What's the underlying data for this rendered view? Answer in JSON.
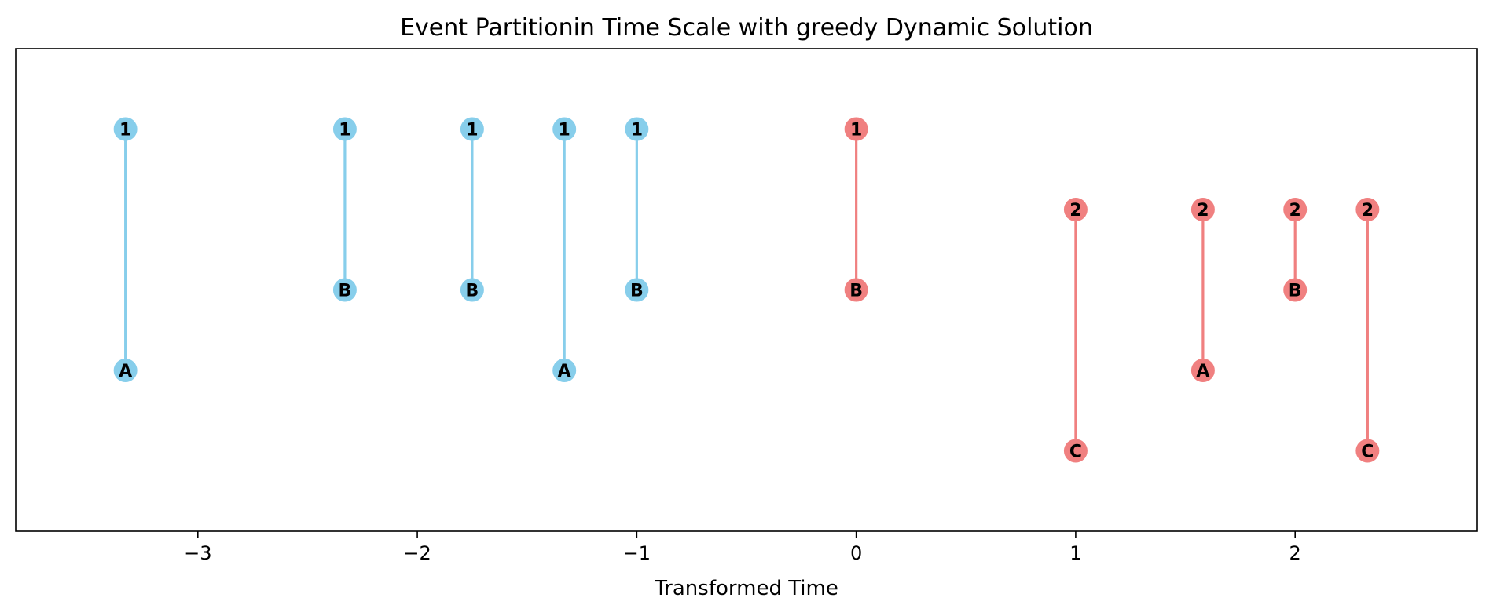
{
  "chart_data": {
    "type": "scatter",
    "title": "Event Partitionin Time Scale with greedy Dynamic Solution",
    "xlabel": "Transformed Time",
    "ylabel": "",
    "xlim": [
      -3.83,
      2.83
    ],
    "ylim": [
      -0.5,
      5.5
    ],
    "x_ticks": [
      -3,
      -2,
      -1,
      0,
      1,
      2
    ],
    "x_tick_labels": [
      "−3",
      "−2",
      "−1",
      "0",
      "1",
      "2"
    ],
    "grid": false,
    "legend": "none",
    "colors": {
      "blue": "#87ceeb",
      "red": "#f08080"
    },
    "levels": {
      "1": 4.5,
      "2": 3.5,
      "B": 2.5,
      "A": 1.5,
      "C": 0.5
    },
    "events": [
      {
        "x": -3.33,
        "top": "1",
        "bottom": "A",
        "color": "blue"
      },
      {
        "x": -2.33,
        "top": "1",
        "bottom": "B",
        "color": "blue"
      },
      {
        "x": -1.75,
        "top": "1",
        "bottom": "B",
        "color": "blue"
      },
      {
        "x": -1.33,
        "top": "1",
        "bottom": "A",
        "color": "blue"
      },
      {
        "x": -1.0,
        "top": "1",
        "bottom": "B",
        "color": "blue"
      },
      {
        "x": 0.0,
        "top": "1",
        "bottom": "B",
        "color": "red"
      },
      {
        "x": 1.0,
        "top": "2",
        "bottom": "C",
        "color": "red"
      },
      {
        "x": 1.58,
        "top": "2",
        "bottom": "A",
        "color": "red"
      },
      {
        "x": 2.0,
        "top": "2",
        "bottom": "B",
        "color": "red"
      },
      {
        "x": 2.33,
        "top": "2",
        "bottom": "C",
        "color": "red"
      }
    ]
  }
}
